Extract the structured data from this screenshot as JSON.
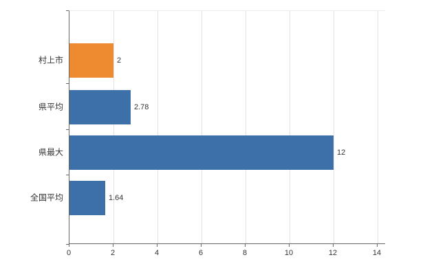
{
  "chart_data": {
    "type": "bar",
    "orientation": "horizontal",
    "title": "",
    "categories": [
      "村上市",
      "県平均",
      "県最大",
      "全国平均"
    ],
    "values": [
      2,
      2.78,
      12,
      1.64
    ],
    "value_labels": [
      "2",
      "2.78",
      "12",
      "1.64"
    ],
    "bar_colors": [
      "#ee8b31",
      "#3d6fa8",
      "#3d6fa8",
      "#3d6fa8"
    ],
    "xlim": [
      0,
      14
    ],
    "xticks": [
      0,
      2,
      4,
      6,
      8,
      10,
      12,
      14
    ],
    "grid": true,
    "legend_position": "none",
    "axis_color": "#666666",
    "gridline_color": "#e3e3e3"
  }
}
